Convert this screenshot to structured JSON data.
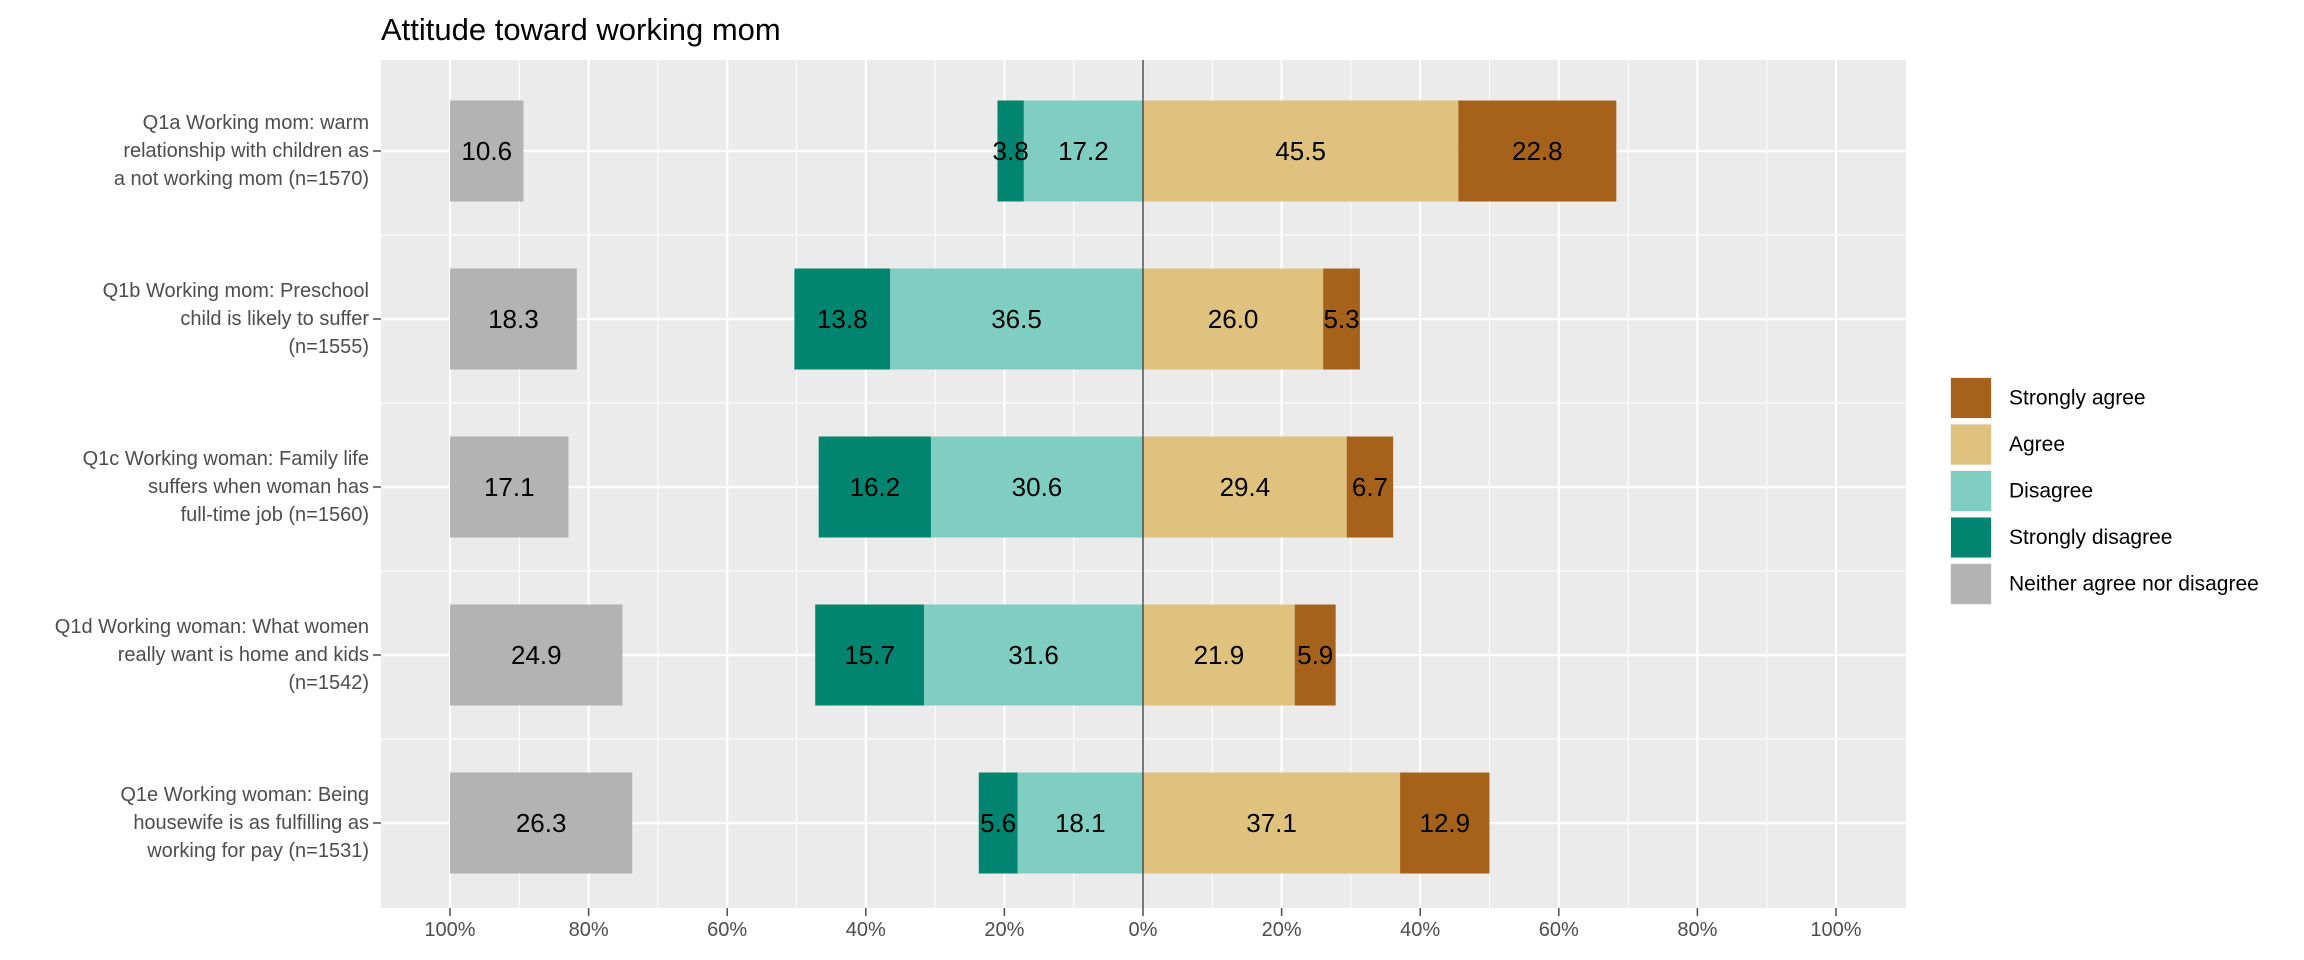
{
  "chart_data": {
    "type": "bar",
    "orientation": "horizontal",
    "stacking": "diverging",
    "title": "Attitude toward working mom",
    "xlabel": "",
    "ylabel": "",
    "xlim": [
      -100,
      100
    ],
    "x_ticks": [
      -100,
      -80,
      -60,
      -40,
      -20,
      0,
      20,
      40,
      60,
      80,
      100
    ],
    "x_tick_labels": [
      "100%",
      "80%",
      "60%",
      "40%",
      "20%",
      "0%",
      "20%",
      "40%",
      "60%",
      "80%",
      "100%"
    ],
    "grid": true,
    "legend_position": "right",
    "neutral_anchor": -100,
    "categories": [
      "Q1a Working mom: warm\nrelationship with children as\na not working mom (n=1570)",
      "Q1b Working mom: Preschool\nchild is likely to suffer\n(n=1555)",
      "Q1c Working woman: Family life\nsuffers when woman has\nfull-time job (n=1560)",
      "Q1d Working woman: What women\nreally want is home and kids\n(n=1542)",
      "Q1e Working woman: Being\nhousewife is as fulfilling as\nworking for pay (n=1531)"
    ],
    "series": [
      {
        "name": "Strongly agree",
        "side": "positive",
        "order": 2,
        "color": "#A6611A",
        "values": [
          22.8,
          5.3,
          6.7,
          5.9,
          12.9
        ],
        "labels": [
          "22.8",
          "5.3",
          "6.7",
          "5.9",
          "12.9"
        ]
      },
      {
        "name": "Agree",
        "side": "positive",
        "order": 1,
        "color": "#DFC27D",
        "values": [
          45.5,
          26.0,
          29.4,
          21.9,
          37.1
        ],
        "labels": [
          "45.5",
          "26.0",
          "29.4",
          "21.9",
          "37.1"
        ]
      },
      {
        "name": "Disagree",
        "side": "negative",
        "order": 1,
        "color": "#80CDC1",
        "values": [
          17.2,
          36.5,
          30.6,
          31.6,
          18.1
        ],
        "labels": [
          "17.2",
          "36.5",
          "30.6",
          "31.6",
          "18.1"
        ]
      },
      {
        "name": "Strongly disagree",
        "side": "negative",
        "order": 2,
        "color": "#018571",
        "values": [
          3.8,
          13.8,
          16.2,
          15.7,
          5.6
        ],
        "labels": [
          "3.8",
          "13.8",
          "16.2",
          "15.7",
          "5.6"
        ]
      },
      {
        "name": "Neither agree nor disagree",
        "side": "neutral",
        "order": 0,
        "color": "#B3B3B3",
        "values": [
          10.6,
          18.3,
          17.1,
          24.9,
          26.3
        ],
        "labels": [
          "10.6",
          "18.3",
          "17.1",
          "24.9",
          "26.3"
        ]
      }
    ],
    "legend_order": [
      "Strongly agree",
      "Agree",
      "Disagree",
      "Strongly disagree",
      "Neither agree nor disagree"
    ]
  }
}
